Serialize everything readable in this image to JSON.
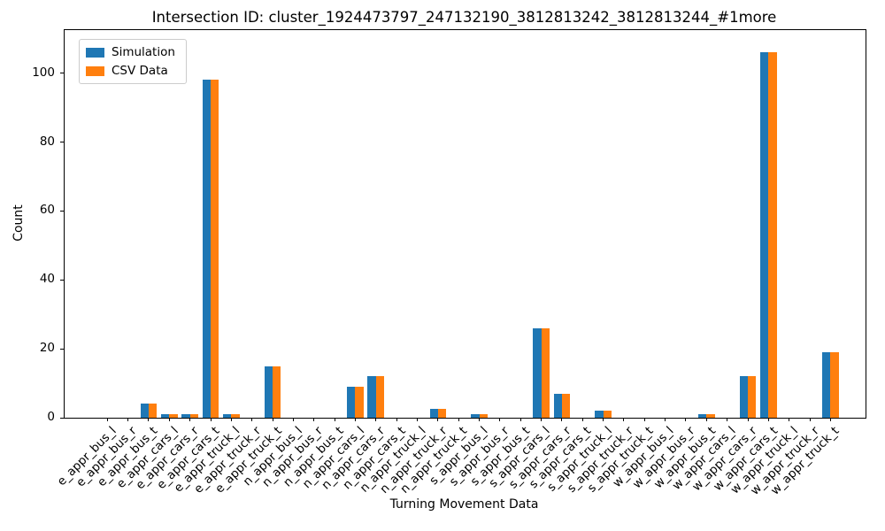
{
  "chart_data": {
    "type": "bar",
    "title": "Intersection ID: cluster_1924473797_247132190_3812813242_3812813244_#1more",
    "xlabel": "Turning Movement Data",
    "ylabel": "Count",
    "ylim": [
      0,
      112.5
    ],
    "yticks": [
      0,
      20,
      40,
      60,
      80,
      100
    ],
    "grid": false,
    "legend_position": "upper left",
    "background_color": "#ffffff",
    "categories": [
      "e_appr_bus_l",
      "e_appr_bus_r",
      "e_appr_bus_t",
      "e_appr_cars_l",
      "e_appr_cars_r",
      "e_appr_cars_t",
      "e_appr_truck_l",
      "e_appr_truck_r",
      "e_appr_truck_t",
      "n_appr_bus_l",
      "n_appr_bus_r",
      "n_appr_bus_t",
      "n_appr_cars_l",
      "n_appr_cars_r",
      "n_appr_cars_t",
      "n_appr_truck_l",
      "n_appr_truck_r",
      "n_appr_truck_t",
      "s_appr_bus_l",
      "s_appr_bus_r",
      "s_appr_bus_t",
      "s_appr_cars_l",
      "s_appr_cars_r",
      "s_appr_cars_t",
      "s_appr_truck_l",
      "s_appr_truck_r",
      "s_appr_truck_t",
      "w_appr_bus_l",
      "w_appr_bus_r",
      "w_appr_bus_t",
      "w_appr_cars_l",
      "w_appr_cars_r",
      "w_appr_cars_t",
      "w_appr_truck_l",
      "w_appr_truck_r",
      "w_appr_truck_t"
    ],
    "series": [
      {
        "name": "Simulation",
        "color": "#1f77b4",
        "values": [
          0,
          0,
          4,
          1,
          1,
          98,
          1,
          0,
          15,
          0,
          0,
          0,
          9,
          12,
          0,
          0,
          2.5,
          0,
          1,
          0,
          0,
          26,
          7,
          0,
          2,
          0,
          0,
          0,
          0,
          1,
          0,
          12,
          106,
          0,
          0,
          19
        ]
      },
      {
        "name": "CSV Data",
        "color": "#ff7f0e",
        "values": [
          0,
          0,
          4,
          1,
          1,
          98,
          1,
          0,
          15,
          0,
          0,
          0,
          9,
          12,
          0,
          0,
          2.5,
          0,
          1,
          0,
          0,
          26,
          7,
          0,
          2,
          0,
          0,
          0,
          0,
          1,
          0,
          12,
          106,
          0,
          0,
          19
        ]
      }
    ]
  }
}
